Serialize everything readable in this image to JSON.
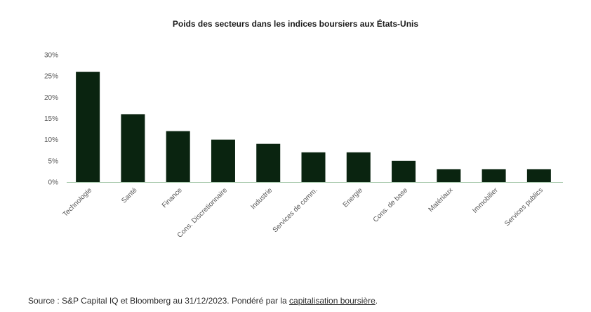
{
  "chart_data": {
    "type": "bar",
    "title": "Poids des secteurs dans les indices boursiers aux États-Unis",
    "xlabel": "",
    "ylabel": "",
    "categories": [
      "Technologie",
      "Santé",
      "Finance",
      "Cons. Discretionnaire",
      "Industrie",
      "Services de comm.",
      "Energie",
      "Cons. de base",
      "Matériaux",
      "Immobilier",
      "Services publics"
    ],
    "values": [
      26,
      16,
      12,
      10,
      9,
      7,
      7,
      5,
      3,
      3,
      3
    ],
    "ylim": [
      0,
      30
    ],
    "yticks": [
      0,
      5,
      10,
      15,
      20,
      25,
      30
    ],
    "ytick_labels": [
      "0%",
      "5%",
      "10%",
      "15%",
      "20%",
      "25%",
      "30%"
    ],
    "grid": false,
    "legend": "none",
    "bar_color": "#0a2410",
    "axis_color": "#9ec3a4"
  },
  "footer": {
    "source_prefix": "Source : S&P Capital IQ et Bloomberg au 31/12/2023. Pondéré par la ",
    "source_link": "capitalisation boursière",
    "source_suffix": "."
  }
}
